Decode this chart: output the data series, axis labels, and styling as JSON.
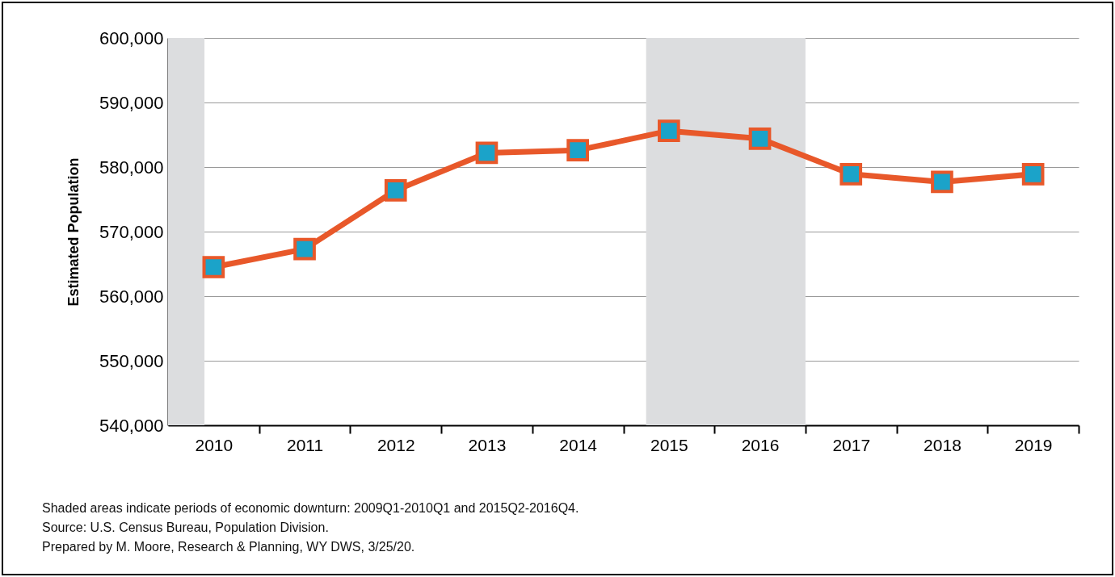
{
  "chart_data": {
    "type": "line",
    "ylabel": "Estimated Population",
    "x": [
      2010,
      2011,
      2012,
      2013,
      2014,
      2015,
      2016,
      2017,
      2018,
      2019
    ],
    "series": [
      {
        "color": "#e8582a",
        "colors": [
          "#1ba3c9",
          "#1ba3c9",
          "#1ba3c9",
          "#1ba3c9",
          "#1ba3c9",
          "#1ba3c9",
          "#1ba3c9",
          "#1ba3c9",
          "#1ba3c9",
          "#1ba3c9"
        ],
        "values": [
          564500,
          567300,
          576400,
          582200,
          582600,
          585600,
          584400,
          578900,
          577700,
          578900
        ]
      }
    ],
    "xlim": [
      2009.5,
      2019.5
    ],
    "xticks": [
      2010,
      {
        "value": 2010.5,
        "label": null
      },
      2011,
      {
        "value": 2011.5,
        "label": null
      },
      2012,
      {
        "value": 2012.5,
        "label": null
      },
      2013,
      {
        "value": 2013.5,
        "label": null
      },
      2014,
      {
        "value": 2014.5,
        "label": null
      },
      2015,
      {
        "value": 2015.5,
        "label": null
      },
      2016,
      {
        "value": 2016.5,
        "label": null
      },
      2017,
      {
        "value": 2017.5,
        "label": null
      },
      2018,
      {
        "value": 2018.5,
        "label": null
      },
      2019,
      {
        "value": 2019.5,
        "label": null
      }
    ],
    "ylim": [
      540000,
      600000
    ],
    "yticks": [
      {
        "value": 540000,
        "label": "540,000"
      },
      {
        "value": 550000,
        "label": "550,000"
      },
      {
        "value": 560000,
        "label": "560,000"
      },
      {
        "value": 570000,
        "label": "570,000"
      },
      {
        "value": 580000,
        "label": "580,000"
      },
      {
        "value": 590000,
        "label": "590,000"
      },
      {
        "value": 600000,
        "label": "600,000"
      }
    ],
    "grid": "y",
    "marker": "square",
    "line_style": "solid",
    "bands": [
      {
        "axis": "x",
        "from": 2009.5,
        "to": 2009.9,
        "color": "#dcdddf"
      },
      {
        "axis": "x",
        "from": 2014.75,
        "to": 2016.5,
        "color": "#dcdddf"
      }
    ],
    "annotations": [
      "Shaded areas indicate periods of economic downturn: 2009Q1-2010Q1 and 2015Q2-2016Q4.",
      "Source: U.S. Census Bureau, Population Division.",
      "Prepared by M. Moore, Research & Planning, WY DWS, 3/25/20."
    ]
  }
}
